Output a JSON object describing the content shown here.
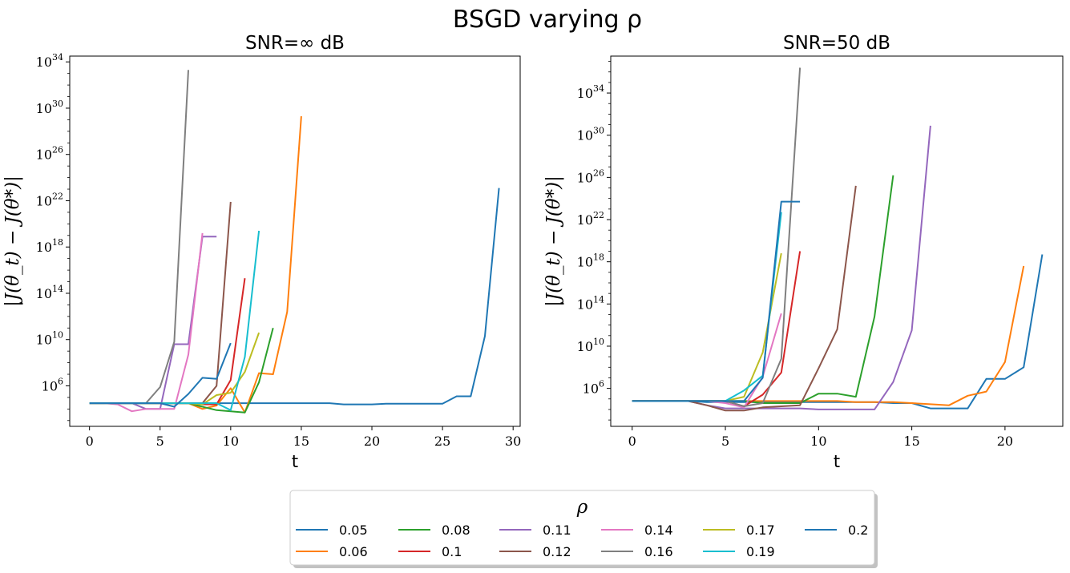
{
  "chart_title": "BSGD varying ρ",
  "legend": {
    "title": "ρ",
    "placement": "bottom-center",
    "entries": [
      {
        "label": "0.05",
        "color": "#1f77b4"
      },
      {
        "label": "0.06",
        "color": "#ff7f0e"
      },
      {
        "label": "0.08",
        "color": "#2ca02c"
      },
      {
        "label": "0.1",
        "color": "#d62728"
      },
      {
        "label": "0.11",
        "color": "#9467bd"
      },
      {
        "label": "0.12",
        "color": "#8c564b"
      },
      {
        "label": "0.14",
        "color": "#e377c2"
      },
      {
        "label": "0.16",
        "color": "#7f7f7f"
      },
      {
        "label": "0.17",
        "color": "#bcbd22"
      },
      {
        "label": "0.19",
        "color": "#17becf"
      },
      {
        "label": "0.2",
        "color": "#1f77b4"
      }
    ]
  },
  "chart_data": [
    {
      "type": "line",
      "title": "SNR=∞ dB",
      "xlabel": "t",
      "ylabel": "|J(θ_t) − J(θ*)|",
      "yscale": "log",
      "xlim": [
        -1.4,
        30.5
      ],
      "ylim_log10": [
        2.5,
        34.5
      ],
      "xticks": [
        0,
        5,
        10,
        15,
        20,
        25,
        30
      ],
      "yticks_exp": [
        6,
        10,
        14,
        18,
        22,
        26,
        30,
        34
      ],
      "series": [
        {
          "name": "0.05",
          "x": [
            0,
            1,
            2,
            3,
            4,
            5,
            6,
            7,
            8,
            9,
            10,
            11,
            12,
            13,
            14,
            15,
            16,
            17,
            18,
            19,
            20,
            21,
            22,
            23,
            24,
            25,
            26,
            27,
            28,
            29
          ],
          "y_log10": [
            4.5,
            4.5,
            4.5,
            4.5,
            4.5,
            4.5,
            4.5,
            4.5,
            4.5,
            4.5,
            4.5,
            4.5,
            4.5,
            4.5,
            4.5,
            4.5,
            4.5,
            4.5,
            4.4,
            4.4,
            4.4,
            4.45,
            4.45,
            4.45,
            4.45,
            4.45,
            5.1,
            5.1,
            10.3,
            23.1
          ]
        },
        {
          "name": "0.06",
          "x": [
            0,
            1,
            2,
            3,
            4,
            5,
            6,
            7,
            8,
            9,
            10,
            11,
            12,
            13,
            14,
            15
          ],
          "y_log10": [
            4.5,
            4.5,
            4.5,
            4.5,
            4.5,
            4.5,
            4.5,
            4.5,
            4.0,
            4.3,
            5.8,
            3.7,
            7.1,
            7.0,
            12.4,
            29.3
          ]
        },
        {
          "name": "0.08",
          "x": [
            0,
            1,
            2,
            3,
            4,
            5,
            6,
            7,
            8,
            9,
            10,
            11,
            12,
            13
          ],
          "y_log10": [
            4.5,
            4.5,
            4.5,
            4.5,
            4.5,
            4.5,
            4.5,
            4.5,
            4.2,
            3.9,
            3.8,
            3.7,
            6.3,
            11.0
          ]
        },
        {
          "name": "0.1",
          "x": [
            0,
            1,
            2,
            3,
            4,
            5,
            6,
            7,
            8,
            9,
            10,
            11
          ],
          "y_log10": [
            4.5,
            4.5,
            4.5,
            4.5,
            4.5,
            4.5,
            4.5,
            4.5,
            4.4,
            4.4,
            6.5,
            15.3
          ]
        },
        {
          "name": "0.11",
          "x": [
            0,
            1,
            2,
            3,
            4,
            5,
            6,
            7,
            8,
            9
          ],
          "y_log10": [
            4.5,
            4.5,
            4.5,
            4.5,
            4.0,
            4.0,
            9.6,
            9.6,
            18.9,
            18.9
          ]
        },
        {
          "name": "0.12",
          "x": [
            0,
            1,
            2,
            3,
            4,
            5,
            6,
            7,
            8,
            9,
            10
          ],
          "y_log10": [
            4.5,
            4.5,
            4.5,
            4.5,
            4.5,
            4.5,
            4.5,
            4.5,
            4.5,
            6.0,
            21.9
          ]
        },
        {
          "name": "0.14",
          "x": [
            0,
            1,
            2,
            3,
            4,
            5,
            6,
            7,
            8
          ],
          "y_log10": [
            4.5,
            4.5,
            4.4,
            3.8,
            4.0,
            4.0,
            4.0,
            8.7,
            19.2
          ]
        },
        {
          "name": "0.16",
          "x": [
            0,
            1,
            2,
            3,
            4,
            5,
            6,
            7
          ],
          "y_log10": [
            4.5,
            4.5,
            4.5,
            4.5,
            4.5,
            5.9,
            9.8,
            33.3
          ]
        },
        {
          "name": "0.17",
          "x": [
            0,
            1,
            2,
            3,
            4,
            5,
            6,
            7,
            8,
            9,
            10,
            11,
            12
          ],
          "y_log10": [
            4.5,
            4.5,
            4.5,
            4.5,
            4.5,
            4.5,
            4.5,
            4.5,
            4.4,
            5.2,
            5.4,
            7.2,
            10.6
          ]
        },
        {
          "name": "0.19",
          "x": [
            0,
            1,
            2,
            3,
            4,
            5,
            6,
            7,
            8,
            9,
            10,
            11,
            12
          ],
          "y_log10": [
            4.5,
            4.5,
            4.5,
            4.5,
            4.5,
            4.5,
            4.5,
            4.5,
            4.5,
            4.5,
            3.9,
            8.5,
            19.4
          ]
        },
        {
          "name": "0.2",
          "x": [
            0,
            1,
            2,
            3,
            4,
            5,
            6,
            7,
            8,
            9,
            10
          ],
          "y_log10": [
            4.5,
            4.5,
            4.5,
            4.5,
            4.5,
            4.5,
            4.2,
            5.3,
            6.7,
            6.6,
            9.7
          ]
        }
      ]
    },
    {
      "type": "line",
      "title": "SNR=50 dB",
      "xlabel": "t",
      "ylabel": "|J(θ_t) − J(θ*)|",
      "yscale": "log",
      "xlim": [
        -1.15,
        23.1
      ],
      "ylim_log10": [
        2.4,
        37.5
      ],
      "xticks": [
        0,
        5,
        10,
        15,
        20
      ],
      "yticks_exp": [
        6,
        10,
        14,
        18,
        22,
        26,
        30,
        34
      ],
      "series": [
        {
          "name": "0.05",
          "x": [
            0,
            1,
            2,
            3,
            4,
            5,
            6,
            7,
            8,
            9,
            10,
            11,
            12,
            13,
            14,
            15,
            16,
            17,
            18,
            19,
            20,
            21,
            22
          ],
          "y_log10": [
            4.8,
            4.8,
            4.8,
            4.8,
            4.7,
            4.7,
            4.7,
            4.7,
            4.7,
            4.7,
            4.7,
            4.7,
            4.7,
            4.7,
            4.6,
            4.6,
            4.1,
            4.1,
            4.1,
            6.9,
            6.9,
            8.0,
            18.7
          ]
        },
        {
          "name": "0.06",
          "x": [
            0,
            1,
            2,
            3,
            4,
            5,
            6,
            7,
            8,
            9,
            10,
            11,
            12,
            13,
            14,
            15,
            16,
            17,
            18,
            19,
            20,
            21
          ],
          "y_log10": [
            4.8,
            4.8,
            4.8,
            4.8,
            4.8,
            4.8,
            4.8,
            4.8,
            4.8,
            4.8,
            4.8,
            4.8,
            4.7,
            4.7,
            4.7,
            4.6,
            4.5,
            4.4,
            5.3,
            5.7,
            8.5,
            17.6
          ]
        },
        {
          "name": "0.08",
          "x": [
            0,
            1,
            2,
            3,
            4,
            5,
            6,
            7,
            8,
            9,
            10,
            11,
            12,
            13,
            14
          ],
          "y_log10": [
            4.8,
            4.8,
            4.8,
            4.8,
            4.8,
            4.8,
            4.8,
            4.6,
            4.6,
            4.6,
            5.5,
            5.5,
            5.2,
            12.8,
            26.2
          ]
        },
        {
          "name": "0.1",
          "x": [
            0,
            1,
            2,
            3,
            4,
            5,
            6,
            7,
            8,
            9
          ],
          "y_log10": [
            4.8,
            4.8,
            4.8,
            4.8,
            4.8,
            4.8,
            4.3,
            5.4,
            7.5,
            19.0
          ]
        },
        {
          "name": "0.11",
          "x": [
            0,
            1,
            2,
            3,
            4,
            5,
            6,
            7,
            8,
            9,
            10,
            11,
            12,
            13,
            14,
            15,
            16
          ],
          "y_log10": [
            4.8,
            4.8,
            4.8,
            4.8,
            4.4,
            4.1,
            4.1,
            4.1,
            4.1,
            4.1,
            4.0,
            4.0,
            4.0,
            4.0,
            6.6,
            11.5,
            30.9
          ]
        },
        {
          "name": "0.12",
          "x": [
            0,
            1,
            2,
            3,
            4,
            5,
            6,
            7,
            8,
            9,
            10,
            11,
            12
          ],
          "y_log10": [
            4.8,
            4.8,
            4.8,
            4.8,
            4.4,
            3.9,
            3.9,
            4.2,
            4.3,
            4.4,
            7.9,
            11.6,
            25.2
          ]
        },
        {
          "name": "0.14",
          "x": [
            0,
            1,
            2,
            3,
            4,
            5,
            6,
            7,
            8
          ],
          "y_log10": [
            4.8,
            4.8,
            4.8,
            4.8,
            4.8,
            4.6,
            4.2,
            7.1,
            13.1
          ]
        },
        {
          "name": "0.16",
          "x": [
            0,
            1,
            2,
            3,
            4,
            5,
            6,
            7,
            8,
            9
          ],
          "y_log10": [
            4.8,
            4.8,
            4.8,
            4.8,
            4.8,
            4.8,
            4.3,
            4.6,
            8.8,
            36.4
          ]
        },
        {
          "name": "0.17",
          "x": [
            0,
            1,
            2,
            3,
            4,
            5,
            6,
            7,
            8
          ],
          "y_log10": [
            4.8,
            4.8,
            4.8,
            4.8,
            4.8,
            4.8,
            5.2,
            9.4,
            18.8
          ]
        },
        {
          "name": "0.19",
          "x": [
            0,
            1,
            2,
            3,
            4,
            5,
            6,
            7,
            8
          ],
          "y_log10": [
            4.8,
            4.8,
            4.8,
            4.8,
            4.8,
            4.8,
            5.8,
            7.2,
            22.7
          ]
        },
        {
          "name": "0.2",
          "x": [
            0,
            1,
            2,
            3,
            4,
            5,
            6,
            7,
            8,
            9
          ],
          "y_log10": [
            4.8,
            4.8,
            4.8,
            4.8,
            4.8,
            4.8,
            4.8,
            7.0,
            23.7,
            23.7
          ]
        }
      ]
    }
  ]
}
